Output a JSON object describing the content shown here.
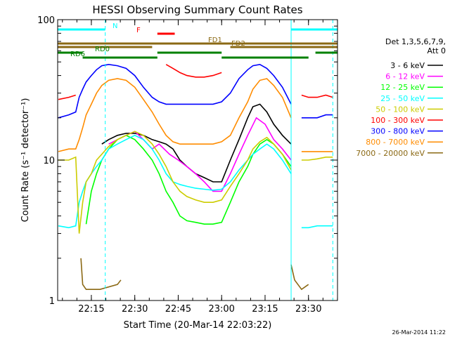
{
  "chart_data": {
    "type": "line",
    "title": "HESSI Observing Summary Count Rates",
    "xlabel": "Start Time (20-Mar-14 22:03:22)",
    "ylabel": "Count Rate (s⁻¹ detector⁻¹)",
    "y_scale": "log",
    "ylim": [
      1,
      100
    ],
    "xlim": [
      22.056,
      23.667
    ],
    "x_unit": "hours (UT)",
    "x_ticks": [
      {
        "value": 22.25,
        "label": "22:15"
      },
      {
        "value": 22.5,
        "label": "22:30"
      },
      {
        "value": 22.75,
        "label": "22:45"
      },
      {
        "value": 23.0,
        "label": "23:00"
      },
      {
        "value": 23.25,
        "label": "23:15"
      },
      {
        "value": 23.5,
        "label": "23:30"
      }
    ],
    "y_ticks": [
      {
        "value": 1,
        "label": "1"
      },
      {
        "value": 10,
        "label": "10"
      },
      {
        "value": 100,
        "label": "100"
      }
    ],
    "legend_header": [
      "Det 1,3,5,6,7,9,",
      "Att 0"
    ],
    "legend_position": "right",
    "series": [
      {
        "name": "3 - 6 keV",
        "color": "#000000",
        "x": [
          22.06,
          22.18,
          22.2,
          22.22,
          22.25,
          22.28,
          22.31,
          22.35,
          22.4,
          22.45,
          22.5,
          22.55,
          22.6,
          22.64,
          22.68,
          22.72,
          22.76,
          22.8,
          22.85,
          22.9,
          22.95,
          23.0,
          23.05,
          23.1,
          23.15,
          23.18,
          23.22,
          23.26,
          23.3,
          23.35,
          23.4,
          23.42,
          23.46,
          23.5,
          23.55,
          23.6,
          23.64
        ],
        "y": [
          null,
          null,
          null,
          null,
          null,
          null,
          13,
          14,
          15,
          15.5,
          15.5,
          15,
          14,
          13.5,
          13,
          12,
          10,
          9,
          8,
          7.5,
          7,
          7,
          10,
          14,
          20,
          24,
          25,
          22,
          18,
          15,
          13,
          null,
          null,
          null,
          null,
          null,
          null
        ]
      },
      {
        "name": "6 - 12 keV",
        "color": "#ff00ff",
        "x": [
          22.06,
          22.3,
          22.35,
          22.4,
          22.45,
          22.5,
          22.55,
          22.6,
          22.64,
          22.7,
          22.75,
          22.8,
          22.85,
          22.9,
          22.95,
          23.0,
          23.05,
          23.1,
          23.15,
          23.2,
          23.25,
          23.3,
          23.35,
          23.4,
          23.42,
          23.6
        ],
        "y": [
          null,
          null,
          13,
          14,
          15,
          16,
          14,
          12,
          13,
          11,
          10,
          9,
          8,
          7,
          6,
          6,
          8,
          11,
          15,
          20,
          18,
          14,
          12,
          10,
          null,
          null
        ]
      },
      {
        "name": "12 - 25 keV",
        "color": "#00ff00",
        "x": [
          22.06,
          22.18,
          22.2,
          22.22,
          22.25,
          22.28,
          22.31,
          22.35,
          22.4,
          22.45,
          22.5,
          22.55,
          22.6,
          22.64,
          22.68,
          22.72,
          22.76,
          22.8,
          22.85,
          22.9,
          22.95,
          23.0,
          23.05,
          23.1,
          23.15,
          23.18,
          23.22,
          23.26,
          23.3,
          23.35,
          23.4,
          23.42,
          23.46,
          23.5,
          23.55,
          23.6,
          23.64
        ],
        "y": [
          null,
          null,
          null,
          3.5,
          6,
          8,
          10,
          12,
          14,
          15,
          14,
          12,
          10,
          8,
          6,
          5,
          4,
          3.7,
          3.6,
          3.5,
          3.5,
          3.6,
          5,
          7,
          9,
          11,
          13,
          14,
          13,
          11,
          9,
          null,
          null,
          null,
          null,
          null,
          null
        ]
      },
      {
        "name": "25 - 50 keV",
        "color": "#00ffff",
        "x": [
          22.06,
          22.12,
          22.16,
          22.18,
          22.2,
          22.22,
          22.25,
          22.28,
          22.31,
          22.35,
          22.4,
          22.45,
          22.5,
          22.55,
          22.6,
          22.64,
          22.68,
          22.72,
          22.76,
          22.8,
          22.85,
          22.9,
          22.95,
          23.0,
          23.05,
          23.1,
          23.15,
          23.18,
          23.22,
          23.26,
          23.3,
          23.35,
          23.4,
          23.42,
          23.46,
          23.5,
          23.55,
          23.6,
          23.64
        ],
        "y": [
          3.4,
          3.3,
          3.4,
          5,
          6,
          7,
          8,
          9,
          10,
          12,
          13,
          14,
          15,
          14,
          12,
          10,
          8,
          7,
          6.7,
          6.5,
          6.3,
          6.2,
          6.1,
          6.2,
          7,
          8.5,
          10,
          11,
          12,
          13,
          12,
          10,
          8,
          null,
          3.3,
          3.3,
          3.4,
          3.4,
          3.4
        ]
      },
      {
        "name": "50 - 100 keV",
        "color": "#cccc00",
        "x": [
          22.06,
          22.12,
          22.16,
          22.18,
          22.2,
          22.22,
          22.25,
          22.28,
          22.31,
          22.35,
          22.4,
          22.45,
          22.5,
          22.55,
          22.6,
          22.64,
          22.68,
          22.72,
          22.76,
          22.8,
          22.85,
          22.9,
          22.95,
          23.0,
          23.05,
          23.1,
          23.15,
          23.18,
          23.22,
          23.26,
          23.3,
          23.35,
          23.4,
          23.42,
          23.46,
          23.5,
          23.55,
          23.6,
          23.64
        ],
        "y": [
          10,
          10,
          10.5,
          3,
          5,
          7,
          8,
          10,
          11,
          12.5,
          14,
          15,
          16,
          15,
          13,
          11,
          9,
          7,
          6,
          5.5,
          5.2,
          5,
          5,
          5.2,
          6.5,
          8,
          10,
          12,
          13.5,
          14.5,
          13,
          11,
          8.5,
          null,
          10,
          10,
          10.2,
          10.5,
          10.5
        ]
      },
      {
        "name": "100 - 300 keV",
        "color": "#ff0000",
        "x": [
          22.06,
          22.12,
          22.16,
          22.18,
          22.2,
          22.22,
          22.25,
          22.28,
          22.31,
          22.35,
          22.4,
          22.45,
          22.5,
          22.55,
          22.6,
          22.64,
          22.68,
          22.72,
          22.76,
          22.8,
          22.85,
          22.9,
          22.95,
          23.0,
          23.05,
          23.1,
          23.15,
          23.18,
          23.22,
          23.26,
          23.3,
          23.35,
          23.4,
          23.42,
          23.46,
          23.5,
          23.55,
          23.6,
          23.64
        ],
        "y": [
          27,
          28,
          29,
          null,
          null,
          null,
          null,
          null,
          null,
          null,
          null,
          null,
          null,
          null,
          null,
          null,
          48,
          45,
          42,
          40,
          39,
          39,
          40,
          42,
          null,
          null,
          null,
          null,
          null,
          null,
          null,
          null,
          null,
          null,
          29,
          28,
          28,
          29,
          28
        ]
      },
      {
        "name": "300 - 800 keV",
        "color": "#0000ff",
        "x": [
          22.06,
          22.12,
          22.16,
          22.18,
          22.2,
          22.22,
          22.25,
          22.28,
          22.31,
          22.35,
          22.4,
          22.45,
          22.5,
          22.55,
          22.6,
          22.64,
          22.68,
          22.72,
          22.76,
          22.8,
          22.85,
          22.9,
          22.95,
          23.0,
          23.05,
          23.1,
          23.15,
          23.18,
          23.22,
          23.26,
          23.3,
          23.35,
          23.4,
          23.42,
          23.46,
          23.5,
          23.55,
          23.6,
          23.64
        ],
        "y": [
          20,
          21,
          22,
          28,
          32,
          36,
          40,
          44,
          47,
          48,
          47,
          45,
          40,
          33,
          28,
          26,
          25,
          25,
          25,
          25,
          25,
          25,
          25,
          26,
          30,
          38,
          44,
          47,
          48,
          45,
          40,
          33,
          25,
          null,
          20,
          20,
          20,
          21,
          21
        ]
      },
      {
        "name": "800 - 7000 keV",
        "color": "#ff8c00",
        "x": [
          22.06,
          22.12,
          22.16,
          22.18,
          22.2,
          22.22,
          22.25,
          22.28,
          22.31,
          22.35,
          22.4,
          22.45,
          22.5,
          22.55,
          22.6,
          22.64,
          22.68,
          22.72,
          22.76,
          22.8,
          22.85,
          22.9,
          22.95,
          23.0,
          23.05,
          23.1,
          23.15,
          23.18,
          23.22,
          23.26,
          23.3,
          23.35,
          23.4,
          23.42,
          23.46,
          23.5,
          23.55,
          23.6,
          23.64
        ],
        "y": [
          11.5,
          12,
          12,
          14,
          17,
          21,
          25,
          30,
          34,
          37,
          38,
          37,
          33,
          27,
          22,
          18,
          15,
          13.5,
          13,
          13,
          13,
          13,
          13,
          13.5,
          15,
          20,
          26,
          32,
          37,
          38,
          34,
          28,
          20,
          null,
          11.5,
          11.5,
          11.5,
          11.5,
          11.5
        ]
      },
      {
        "name": "7000 - 20000 keV",
        "color": "#8b6914",
        "x": [
          22.06,
          22.18,
          22.19,
          22.2,
          22.22,
          22.3,
          22.4,
          22.42,
          22.46,
          22.5,
          23.38,
          23.4,
          23.42,
          23.46,
          23.5,
          23.52,
          23.64
        ],
        "y": [
          null,
          null,
          2,
          1.3,
          1.2,
          1.2,
          1.3,
          1.4,
          null,
          null,
          null,
          1.8,
          1.4,
          1.2,
          1.3,
          null,
          null
        ]
      }
    ],
    "flag_bars": [
      {
        "label": "N",
        "color": "#00ffff",
        "segments": [
          [
            22.056,
            22.33
          ],
          [
            23.4,
            23.667
          ]
        ]
      },
      {
        "label": "F",
        "color": "#ff0000",
        "segments": [
          [
            22.63,
            22.73
          ]
        ]
      },
      {
        "label": "FD1",
        "color": "#8b6914",
        "segments": [
          [
            22.056,
            23.667
          ]
        ]
      },
      {
        "label": "FD2",
        "color": "#8b6914",
        "segments": [
          [
            22.056,
            22.6
          ],
          [
            23.05,
            23.667
          ]
        ]
      },
      {
        "label": "RD0",
        "color": "#008000",
        "segments": [
          [
            22.056,
            22.2
          ],
          [
            22.63,
            23.0
          ],
          [
            23.54,
            23.667
          ]
        ]
      },
      {
        "label": "RD6",
        "color": "#008000",
        "segments": [
          [
            22.2,
            22.63
          ],
          [
            23.0,
            23.5
          ]
        ]
      }
    ],
    "dashed_markers": [
      {
        "x": 22.33,
        "color": "#00ffff"
      },
      {
        "x": 23.64,
        "color": "#00ffff"
      }
    ],
    "solid_markers": [
      {
        "x": 23.4,
        "color": "#00ffff"
      }
    ],
    "grid": false
  },
  "timestamp": "26-Mar-2014 11:22"
}
